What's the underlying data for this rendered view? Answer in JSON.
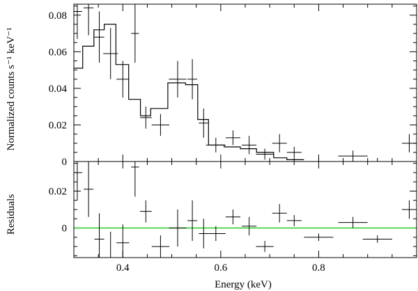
{
  "chart_data": [
    {
      "type": "scatter",
      "panel": "spectrum",
      "ylabel": "Normalized counts s⁻¹ keV⁻¹",
      "xlim": [
        0.3,
        1.0
      ],
      "ylim": [
        0,
        0.086
      ],
      "yticks": [
        0,
        0.02,
        0.04,
        0.06,
        0.08
      ],
      "ytick_labels": [
        "0",
        "0.02",
        "0.04",
        "0.06",
        "0.08"
      ],
      "series": [
        {
          "name": "data",
          "x": [
            0.307,
            0.33,
            0.352,
            0.375,
            0.4,
            0.425,
            0.447,
            0.477,
            0.512,
            0.542,
            0.565,
            0.59,
            0.625,
            0.658,
            0.69,
            0.72,
            0.75,
            0.8,
            0.87,
            0.92,
            0.985
          ],
          "xerr": [
            0.01,
            0.01,
            0.01,
            0.015,
            0.013,
            0.008,
            0.012,
            0.018,
            0.018,
            0.01,
            0.01,
            0.02,
            0.015,
            0.015,
            0.018,
            0.015,
            0.015,
            0.03,
            0.03,
            0.03,
            0.015
          ],
          "y": [
            0.082,
            0.084,
            0.068,
            0.059,
            0.045,
            0.07,
            0.024,
            0.02,
            0.045,
            0.045,
            0.021,
            0.009,
            0.013,
            0.009,
            0.004,
            0.01,
            0.005,
            0.0,
            0.003,
            0.0,
            0.01
          ],
          "yerr": [
            0.015,
            0.015,
            0.014,
            0.014,
            0.01,
            0.016,
            0.006,
            0.006,
            0.01,
            0.011,
            0.008,
            0.004,
            0.004,
            0.005,
            0.003,
            0.005,
            0.003,
            0.002,
            0.003,
            0.002,
            0.005
          ]
        },
        {
          "name": "model",
          "step_edges": [
            0.3,
            0.318,
            0.341,
            0.362,
            0.386,
            0.412,
            0.436,
            0.457,
            0.492,
            0.528,
            0.553,
            0.575,
            0.607,
            0.64,
            0.673,
            0.708,
            0.735,
            0.77
          ],
          "step_values": [
            0.051,
            0.063,
            0.072,
            0.075,
            0.053,
            0.034,
            0.025,
            0.029,
            0.043,
            0.042,
            0.023,
            0.009,
            0.008,
            0.007,
            0.005,
            0.002,
            0.001
          ]
        }
      ]
    },
    {
      "type": "scatter",
      "panel": "residuals",
      "xlabel": "Energy (keV)",
      "ylabel": "Residuals",
      "xlim": [
        0.3,
        1.0
      ],
      "ylim": [
        -0.016,
        0.036
      ],
      "xticks": [
        0.4,
        0.6,
        0.8
      ],
      "xtick_labels": [
        "0.4",
        "0.6",
        "0.8"
      ],
      "yticks": [
        0,
        0.02
      ],
      "ytick_labels": [
        "0",
        "0.02"
      ],
      "reference_line": {
        "y": 0,
        "color": "#22cc22"
      },
      "series": [
        {
          "name": "residuals",
          "x": [
            0.307,
            0.33,
            0.352,
            0.375,
            0.4,
            0.425,
            0.447,
            0.477,
            0.512,
            0.542,
            0.565,
            0.59,
            0.625,
            0.658,
            0.69,
            0.72,
            0.75,
            0.8,
            0.87,
            0.92,
            0.985
          ],
          "xerr": [
            0.01,
            0.01,
            0.01,
            0.015,
            0.013,
            0.008,
            0.012,
            0.018,
            0.018,
            0.01,
            0.01,
            0.02,
            0.015,
            0.015,
            0.018,
            0.015,
            0.015,
            0.03,
            0.03,
            0.03,
            0.015
          ],
          "y": [
            0.03,
            0.021,
            -0.006,
            -0.016,
            -0.008,
            0.033,
            0.009,
            -0.01,
            0.0,
            0.004,
            -0.003,
            -0.003,
            0.006,
            0.001,
            -0.01,
            0.008,
            0.004,
            -0.005,
            0.003,
            -0.006,
            0.01
          ],
          "yerr": [
            0.015,
            0.015,
            0.014,
            0.014,
            0.01,
            0.016,
            0.006,
            0.006,
            0.01,
            0.011,
            0.008,
            0.004,
            0.004,
            0.005,
            0.003,
            0.005,
            0.003,
            0.002,
            0.003,
            0.002,
            0.005
          ]
        }
      ]
    }
  ]
}
